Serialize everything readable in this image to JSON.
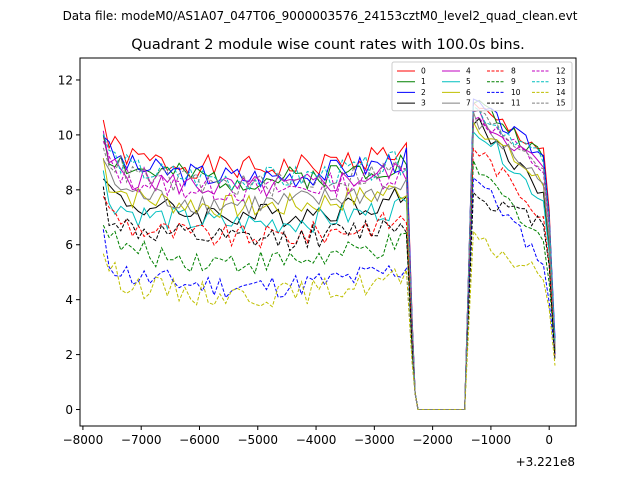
{
  "chart_data": {
    "type": "line",
    "suptitle": "Data file: modeM0/AS1A07_047T06_9000003576_24153cztM0_level2_quad_clean.evt",
    "title": "Quadrant 2 module wise count rates with 100.0s bins.",
    "xlabel": "",
    "ylabel": "",
    "x_offset_label": "+3.221e8",
    "xlim": [
      -8050,
      460
    ],
    "ylim": [
      -0.6,
      12.8
    ],
    "x_ticks": [
      -8000,
      -7000,
      -6000,
      -5000,
      -4000,
      -3000,
      -2000,
      -1000,
      0
    ],
    "x_tick_labels": [
      "−8000",
      "−7000",
      "−6000",
      "−5000",
      "−4000",
      "−3000",
      "−2000",
      "−1000",
      "0"
    ],
    "y_ticks": [
      0,
      2,
      4,
      6,
      8,
      10,
      12
    ],
    "y_tick_labels": [
      "0",
      "2",
      "4",
      "6",
      "8",
      "10",
      "12"
    ],
    "legend_position": "top-right",
    "legend_columns": 4,
    "series": [
      {
        "name": "0",
        "color": "#ff0000",
        "dash": "solid",
        "base": 9.3,
        "post_peak": 11.0,
        "end": 2.0
      },
      {
        "name": "1",
        "color": "#008000",
        "dash": "solid",
        "base": 8.9,
        "post_peak": 11.3,
        "end": 2.4
      },
      {
        "name": "2",
        "color": "#0000ff",
        "dash": "solid",
        "base": 9.0,
        "post_peak": 11.2,
        "end": 2.6
      },
      {
        "name": "3",
        "color": "#000000",
        "dash": "solid",
        "base": 7.6,
        "post_peak": 10.6,
        "end": 2.0
      },
      {
        "name": "4",
        "color": "#c000c0",
        "dash": "solid",
        "base": 8.6,
        "post_peak": 10.8,
        "end": 2.2
      },
      {
        "name": "5",
        "color": "#00bfbf",
        "dash": "solid",
        "base": 7.3,
        "post_peak": 10.4,
        "end": 2.0
      },
      {
        "name": "6",
        "color": "#bfbf00",
        "dash": "solid",
        "base": 7.9,
        "post_peak": 10.5,
        "end": 2.1
      },
      {
        "name": "7",
        "color": "#808080",
        "dash": "solid",
        "base": 8.0,
        "post_peak": 10.6,
        "end": 2.2
      },
      {
        "name": "8",
        "color": "#ff0000",
        "dash": "dashed",
        "base": 6.8,
        "post_peak": 9.6,
        "end": 2.0
      },
      {
        "name": "9",
        "color": "#008000",
        "dash": "dashed",
        "base": 5.9,
        "post_peak": 8.9,
        "end": 2.1
      },
      {
        "name": "10",
        "color": "#0000ff",
        "dash": "dashed",
        "base": 5.0,
        "post_peak": 8.6,
        "end": 2.0
      },
      {
        "name": "11",
        "color": "#000000",
        "dash": "dashed",
        "base": 6.7,
        "post_peak": 7.8,
        "end": 1.8
      },
      {
        "name": "12",
        "color": "#c000c0",
        "dash": "dashed",
        "base": 8.5,
        "post_peak": 10.8,
        "end": 2.3
      },
      {
        "name": "13",
        "color": "#00bfbf",
        "dash": "dashed",
        "base": 8.9,
        "post_peak": 11.0,
        "end": 2.4
      },
      {
        "name": "14",
        "color": "#bfbf00",
        "dash": "dashed",
        "base": 4.7,
        "post_peak": 6.2,
        "end": 1.6
      },
      {
        "name": "15",
        "color": "#808080",
        "dash": "dashed",
        "base": 8.7,
        "post_peak": 10.9,
        "end": 2.3
      }
    ],
    "x": {
      "start": -7650,
      "step": 100,
      "pre_gap_end": -2400,
      "drop_points": [
        -2350,
        -2300
      ],
      "gap_start": -2250,
      "gap_end": -1400,
      "post_gap_start": -1300,
      "last": 50
    }
  }
}
